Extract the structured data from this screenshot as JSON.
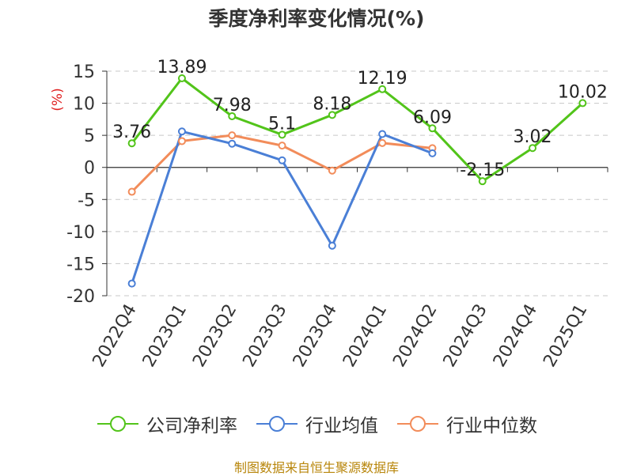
{
  "chart_data": {
    "type": "line",
    "title": "季度净利率变化情况(%)",
    "ylabel": "(%)",
    "ylim": [
      -20,
      15
    ],
    "yticks": [
      15,
      10,
      5,
      0,
      -5,
      -10,
      -15,
      -20
    ],
    "grid": true,
    "legend_position": "bottom",
    "categories": [
      "2022Q4",
      "2023Q1",
      "2023Q2",
      "2023Q3",
      "2023Q4",
      "2024Q1",
      "2024Q2",
      "2024Q3",
      "2024Q4",
      "2025Q1"
    ],
    "series": [
      {
        "name": "公司净利率",
        "color": "#52c41a",
        "label_values": true,
        "values": [
          3.76,
          13.89,
          7.98,
          5.1,
          8.18,
          12.19,
          6.09,
          -2.15,
          3.02,
          10.02
        ]
      },
      {
        "name": "行业均值",
        "color": "#4a7fd6",
        "label_values": false,
        "values": [
          -18.1,
          5.6,
          3.7,
          1.1,
          -12.2,
          5.2,
          2.2,
          null,
          null,
          null
        ]
      },
      {
        "name": "行业中位数",
        "color": "#f28c5a",
        "label_values": false,
        "values": [
          -3.8,
          4.1,
          5.0,
          3.4,
          -0.5,
          3.8,
          3.0,
          null,
          null,
          null
        ]
      }
    ]
  },
  "footer": {
    "source": "制图数据来自恒生聚源数据库"
  }
}
